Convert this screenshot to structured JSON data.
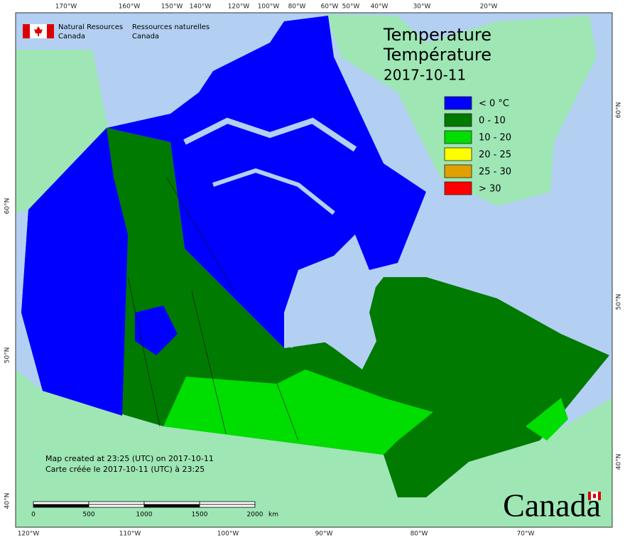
{
  "header": {
    "agency_en": "Natural Resources",
    "country_en": "Canada",
    "agency_fr": "Ressources naturelles",
    "country_fr": "Canada"
  },
  "title": {
    "line1": "Temperature",
    "line2": "Température",
    "date": "2017-10-11"
  },
  "legend": [
    {
      "label": "< 0 °C",
      "color": "#0000ff"
    },
    {
      "label": "0 - 10",
      "color": "#007a00"
    },
    {
      "label": "10 - 20",
      "color": "#00dd00"
    },
    {
      "label": "20 - 25",
      "color": "#ffff00"
    },
    {
      "label": "25 - 30",
      "color": "#e0a000"
    },
    {
      "label": "> 30",
      "color": "#ff0000"
    }
  ],
  "graticule": {
    "top": [
      "170°W",
      "160°W",
      "150°W",
      "140°W",
      "120°W",
      "100°W",
      "80°W",
      "60°W",
      "50°W",
      "40°W",
      "30°W",
      "20°W"
    ],
    "bottom": [
      "120°W",
      "110°W",
      "100°W",
      "90°W",
      "80°W",
      "70°W"
    ],
    "left": [
      "60°N",
      "50°N",
      "40°N"
    ],
    "right": [
      "60°N",
      "50°N",
      "40°N"
    ]
  },
  "credits": {
    "en": "Map created at 23:25 (UTC) on 2017-10-11",
    "fr": "Carte créée le 2017-10-11 (UTC) à 23:25"
  },
  "scale": {
    "labels": [
      "0",
      "500",
      "1000",
      "1500",
      "2000"
    ],
    "unit": "km"
  },
  "wordmark": "Canada"
}
